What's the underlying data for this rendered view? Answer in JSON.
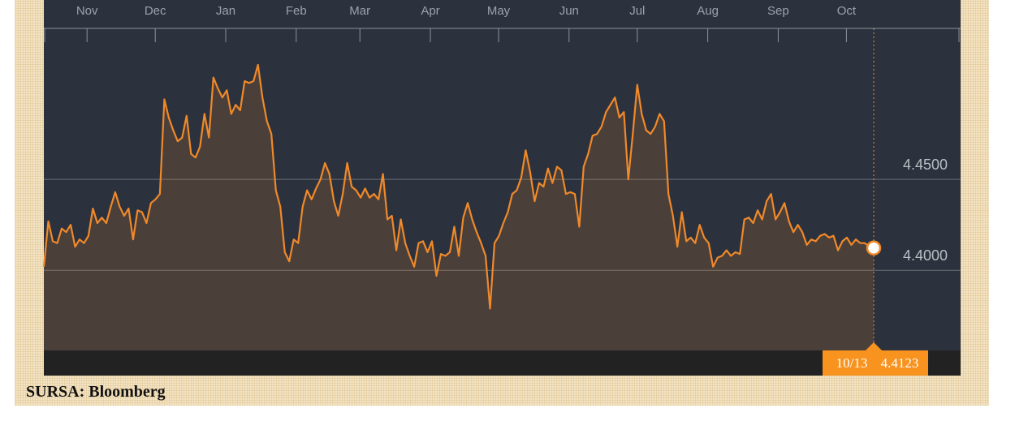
{
  "chart_data": {
    "type": "area-line",
    "source": "SURSA: Bloomberg",
    "xlim": [
      0,
      365
    ],
    "xticks": [
      {
        "value": 19,
        "label": "Nov"
      },
      {
        "value": 49,
        "label": "Dec"
      },
      {
        "value": 80,
        "label": "Jan"
      },
      {
        "value": 111,
        "label": "Feb"
      },
      {
        "value": 139,
        "label": "Mar"
      },
      {
        "value": 170,
        "label": "Apr"
      },
      {
        "value": 200,
        "label": "May"
      },
      {
        "value": 231,
        "label": "Jun"
      },
      {
        "value": 261,
        "label": "Jul"
      },
      {
        "value": 292,
        "label": "Aug"
      },
      {
        "value": 323,
        "label": "Sep"
      },
      {
        "value": 353,
        "label": "Oct"
      }
    ],
    "ylim": [
      4.356,
      4.533
    ],
    "yticks": [
      {
        "value": 4.45,
        "label": "4.4500"
      },
      {
        "value": 4.4,
        "label": "4.4000"
      }
    ],
    "grid": true,
    "series": [
      {
        "color": "#f0892a",
        "values": [
          4.402,
          4.427,
          4.416,
          4.415,
          4.423,
          4.421,
          4.425,
          4.413,
          4.417,
          4.415,
          4.419,
          4.434,
          4.426,
          4.429,
          4.426,
          4.435,
          4.443,
          4.435,
          4.43,
          4.434,
          4.417,
          4.433,
          4.432,
          4.426,
          4.437,
          4.439,
          4.442,
          4.494,
          4.484,
          4.477,
          4.471,
          4.473,
          4.485,
          4.464,
          4.462,
          4.468,
          4.486,
          4.473,
          4.506,
          4.5,
          4.495,
          4.499,
          4.486,
          4.491,
          4.488,
          4.504,
          4.503,
          4.504,
          4.513,
          4.495,
          4.482,
          4.475,
          4.444,
          4.435,
          4.41,
          4.405,
          4.417,
          4.415,
          4.435,
          4.444,
          4.439,
          4.445,
          4.45,
          4.459,
          4.453,
          4.438,
          4.43,
          4.442,
          4.459,
          4.446,
          4.444,
          4.44,
          4.445,
          4.44,
          4.442,
          4.439,
          4.453,
          4.428,
          4.43,
          4.411,
          4.428,
          4.415,
          4.408,
          4.402,
          4.415,
          4.416,
          4.41,
          4.416,
          4.397,
          4.409,
          4.408,
          4.41,
          4.424,
          4.408,
          4.429,
          4.437,
          4.428,
          4.421,
          4.415,
          4.408,
          4.379,
          4.415,
          4.419,
          4.426,
          4.432,
          4.442,
          4.444,
          4.451,
          4.466,
          4.454,
          4.438,
          4.448,
          4.446,
          4.456,
          4.448,
          4.457,
          4.455,
          4.442,
          4.443,
          4.442,
          4.424,
          4.457,
          4.464,
          4.474,
          4.475,
          4.479,
          4.487,
          4.491,
          4.495,
          4.484,
          4.487,
          4.45,
          4.475,
          4.502,
          4.486,
          4.477,
          4.475,
          4.479,
          4.486,
          4.482,
          4.442,
          4.43,
          4.413,
          4.432,
          4.416,
          4.418,
          4.415,
          4.425,
          4.418,
          4.415,
          4.402,
          4.407,
          4.408,
          4.411,
          4.408,
          4.41,
          4.409,
          4.428,
          4.429,
          4.426,
          4.433,
          4.428,
          4.438,
          4.442,
          4.428,
          4.432,
          4.437,
          4.427,
          4.421,
          4.425,
          4.421,
          4.414,
          4.417,
          4.416,
          4.419,
          4.42,
          4.418,
          4.419,
          4.411,
          4.416,
          4.418,
          4.414,
          4.417,
          4.415,
          4.415,
          4.413,
          4.4123
        ]
      }
    ],
    "end_label": {
      "date": "10/13",
      "value": "4.4123"
    }
  }
}
